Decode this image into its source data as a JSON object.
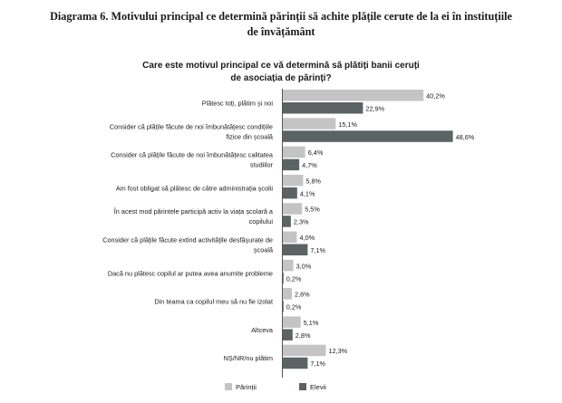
{
  "document": {
    "caption_line1": "Diagrama 6. Motivului principal ce determină părinții să achite plățile cerute de la ei în instituțiile",
    "caption_line2": "de învățământ"
  },
  "chart_data": {
    "type": "bar",
    "orientation": "horizontal",
    "title_lines": [
      "Care este motivul principal ce vă determină să plătiți banii ceruți",
      "de asociația de părinți?"
    ],
    "categories": [
      [
        "Plătesc toți, plătim și noi"
      ],
      [
        "Consider că plățile făcute de noi îmbunătățesc condițiile",
        "fizice din școală"
      ],
      [
        "Consider că plățile făcute de noi  îmbunătățesc calitatea",
        "studiilor"
      ],
      [
        "Am fost obligat să plătesc de către administrația școlii"
      ],
      [
        "În acest mod părintele participă activ la viața școlară a",
        "copilului"
      ],
      [
        "Consider că plățile făcute extind activitățile desfășurate de",
        "școală"
      ],
      [
        "Dacă nu plătesc copilul ar putea avea anumite probleme"
      ],
      [
        "Din teama ca copilul meu să nu fie izolat"
      ],
      [
        "Altceva"
      ],
      [
        "NȘ/NR/nu plătim"
      ]
    ],
    "series": [
      {
        "name": "Părinții",
        "color": "#c4c4c4",
        "values": [
          40.2,
          15.1,
          6.4,
          5.8,
          5.5,
          4.0,
          3.0,
          2.6,
          5.1,
          12.3
        ],
        "labels": [
          "40,2%",
          "15,1%",
          "6,4%",
          "5,8%",
          "5,5%",
          "4,0%",
          "3,0%",
          "2,6%",
          "5,1%",
          "12,3%"
        ]
      },
      {
        "name": "Elevii",
        "color": "#5b6363",
        "values": [
          22.9,
          48.6,
          4.7,
          4.1,
          2.3,
          7.1,
          0.2,
          0.2,
          2.8,
          7.1
        ],
        "labels": [
          "22,9%",
          "48,6%",
          "4,7%",
          "4,1%",
          "2,3%",
          "7,1%",
          "0,2%",
          "0,2%",
          "2,8%",
          "7,1%"
        ]
      }
    ],
    "xlim": [
      0,
      50
    ],
    "grid": false,
    "legend_position": "bottom"
  }
}
